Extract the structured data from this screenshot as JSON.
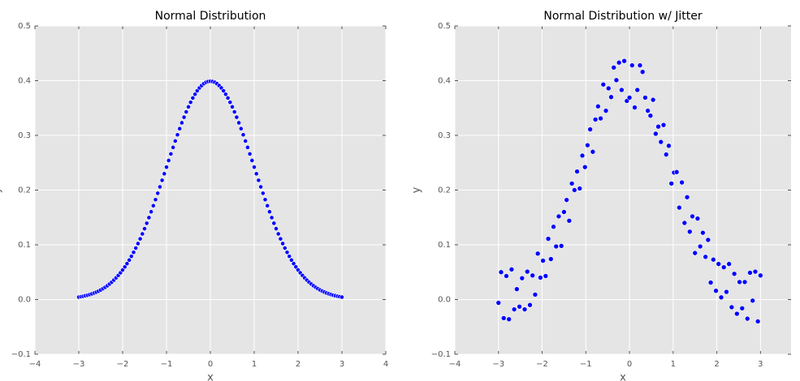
{
  "chart_data": [
    {
      "type": "scatter",
      "title": "Normal Distribution",
      "xlabel": "x",
      "ylabel": "y",
      "color": "#0000ff",
      "grid": true,
      "xlim": [
        -4,
        4
      ],
      "ylim": [
        -0.1,
        0.5
      ],
      "xticks": [
        {
          "value": -4,
          "label": "−4"
        },
        {
          "value": -3,
          "label": "−3"
        },
        {
          "value": -2,
          "label": "−2"
        },
        {
          "value": -1,
          "label": "−1"
        },
        0,
        1,
        2,
        3,
        4
      ],
      "yticks": [
        {
          "value": -0.1,
          "label": "−0.1"
        },
        {
          "value": 0,
          "label": "0.0"
        },
        0.1,
        0.2,
        0.3,
        0.4,
        0.5
      ],
      "x": [
        -3,
        -2.95,
        -2.9,
        -2.85,
        -2.8,
        -2.75,
        -2.7,
        -2.65,
        -2.6,
        -2.55,
        -2.5,
        -2.45,
        -2.4,
        -2.35,
        -2.3,
        -2.25,
        -2.2,
        -2.15,
        -2.1,
        -2.05,
        -2,
        -1.95,
        -1.9,
        -1.85,
        -1.8,
        -1.75,
        -1.7,
        -1.65,
        -1.6,
        -1.55,
        -1.5,
        -1.45,
        -1.4,
        -1.35,
        -1.3,
        -1.25,
        -1.2,
        -1.15,
        -1.1,
        -1.05,
        -1,
        -0.95,
        -0.9,
        -0.85,
        -0.8,
        -0.75,
        -0.7,
        -0.65,
        -0.6,
        -0.55,
        -0.5,
        -0.45,
        -0.4,
        -0.35,
        -0.3,
        -0.25,
        -0.2,
        -0.15,
        -0.1,
        -0.05,
        0,
        0.05,
        0.1,
        0.15,
        0.2,
        0.25,
        0.3,
        0.35,
        0.4,
        0.45,
        0.5,
        0.55,
        0.6,
        0.65,
        0.7,
        0.75,
        0.8,
        0.85,
        0.9,
        0.95,
        1,
        1.05,
        1.1,
        1.15,
        1.2,
        1.25,
        1.3,
        1.35,
        1.4,
        1.45,
        1.5,
        1.55,
        1.6,
        1.65,
        1.7,
        1.75,
        1.8,
        1.85,
        1.9,
        1.95,
        2,
        2.05,
        2.1,
        2.15,
        2.2,
        2.25,
        2.3,
        2.35,
        2.4,
        2.45,
        2.5,
        2.55,
        2.6,
        2.65,
        2.7,
        2.75,
        2.8,
        2.85,
        2.9,
        2.95,
        3
      ],
      "values": [
        0.0044,
        0.0051,
        0.006,
        0.0069,
        0.0079,
        0.0091,
        0.0104,
        0.0119,
        0.0136,
        0.0154,
        0.0175,
        0.0198,
        0.0224,
        0.0252,
        0.0283,
        0.0317,
        0.0355,
        0.0396,
        0.044,
        0.0488,
        0.054,
        0.0596,
        0.0656,
        0.0721,
        0.079,
        0.0863,
        0.094,
        0.1023,
        0.1109,
        0.12,
        0.1295,
        0.1394,
        0.1497,
        0.1604,
        0.1714,
        0.1826,
        0.1942,
        0.2059,
        0.2179,
        0.2299,
        0.242,
        0.2541,
        0.2661,
        0.278,
        0.2897,
        0.3011,
        0.3123,
        0.323,
        0.3332,
        0.3429,
        0.3521,
        0.3605,
        0.3683,
        0.3752,
        0.3814,
        0.3867,
        0.391,
        0.3945,
        0.397,
        0.3984,
        0.3989,
        0.3984,
        0.397,
        0.3945,
        0.391,
        0.3867,
        0.3814,
        0.3752,
        0.3683,
        0.3605,
        0.3521,
        0.3429,
        0.3332,
        0.323,
        0.3123,
        0.3011,
        0.2897,
        0.278,
        0.2661,
        0.2541,
        0.242,
        0.2299,
        0.2179,
        0.2059,
        0.1942,
        0.1826,
        0.1714,
        0.1604,
        0.1497,
        0.1394,
        0.1295,
        0.12,
        0.1109,
        0.1023,
        0.094,
        0.0863,
        0.079,
        0.0721,
        0.0656,
        0.0596,
        0.054,
        0.0488,
        0.044,
        0.0396,
        0.0355,
        0.0317,
        0.0283,
        0.0252,
        0.0224,
        0.0198,
        0.0175,
        0.0154,
        0.0136,
        0.0119,
        0.0104,
        0.0091,
        0.0079,
        0.0069,
        0.006,
        0.0051,
        0.0044
      ]
    },
    {
      "type": "scatter",
      "title": "Normal Distribution w/ Jitter",
      "xlabel": "x",
      "ylabel": "y",
      "color": "#0000ff",
      "grid": true,
      "xlim": [
        -4,
        3.7
      ],
      "ylim": [
        -0.1,
        0.5
      ],
      "xticks": [
        {
          "value": -4,
          "label": "−4"
        },
        {
          "value": -3,
          "label": "−3"
        },
        {
          "value": -2,
          "label": "−2"
        },
        {
          "value": -1,
          "label": "−1"
        },
        0,
        1,
        2,
        3
      ],
      "yticks": [
        {
          "value": -0.1,
          "label": "−0.1"
        },
        {
          "value": 0,
          "label": "0.0"
        },
        0.1,
        0.2,
        0.3,
        0.4,
        0.5
      ],
      "x": [
        -3,
        -2.94,
        -2.88,
        -2.82,
        -2.76,
        -2.7,
        -2.64,
        -2.58,
        -2.52,
        -2.46,
        -2.4,
        -2.34,
        -2.28,
        -2.22,
        -2.16,
        -2.1,
        -2.04,
        -1.98,
        -1.92,
        -1.86,
        -1.8,
        -1.74,
        -1.68,
        -1.62,
        -1.56,
        -1.5,
        -1.44,
        -1.38,
        -1.32,
        -1.26,
        -1.2,
        -1.14,
        -1.08,
        -1.02,
        -0.96,
        -0.9,
        -0.84,
        -0.78,
        -0.72,
        -0.66,
        -0.6,
        -0.54,
        -0.48,
        -0.42,
        -0.36,
        -0.3,
        -0.24,
        -0.18,
        -0.12,
        -0.06,
        0,
        0.06,
        0.12,
        0.18,
        0.24,
        0.3,
        0.36,
        0.42,
        0.48,
        0.54,
        0.6,
        0.66,
        0.72,
        0.78,
        0.84,
        0.9,
        0.96,
        1.02,
        1.08,
        1.14,
        1.2,
        1.26,
        1.32,
        1.38,
        1.44,
        1.5,
        1.56,
        1.62,
        1.68,
        1.74,
        1.8,
        1.86,
        1.92,
        1.98,
        2.04,
        2.1,
        2.16,
        2.22,
        2.28,
        2.34,
        2.4,
        2.46,
        2.52,
        2.58,
        2.64,
        2.7,
        2.76,
        2.82,
        2.88,
        2.94,
        3
      ],
      "values": [
        -0.006,
        0.05,
        -0.034,
        0.043,
        -0.036,
        0.055,
        -0.018,
        0.019,
        -0.013,
        0.039,
        -0.018,
        0.051,
        -0.01,
        0.044,
        0.009,
        0.084,
        0.04,
        0.071,
        0.043,
        0.111,
        0.074,
        0.133,
        0.097,
        0.152,
        0.098,
        0.16,
        0.182,
        0.144,
        0.212,
        0.2,
        0.234,
        0.203,
        0.263,
        0.242,
        0.282,
        0.311,
        0.27,
        0.329,
        0.353,
        0.331,
        0.393,
        0.345,
        0.386,
        0.37,
        0.424,
        0.401,
        0.433,
        0.383,
        0.436,
        0.363,
        0.369,
        0.428,
        0.351,
        0.383,
        0.428,
        0.416,
        0.369,
        0.345,
        0.336,
        0.365,
        0.303,
        0.316,
        0.288,
        0.319,
        0.265,
        0.281,
        0.212,
        0.232,
        0.233,
        0.168,
        0.214,
        0.14,
        0.187,
        0.124,
        0.152,
        0.085,
        0.148,
        0.097,
        0.122,
        0.078,
        0.109,
        0.031,
        0.073,
        0.016,
        0.065,
        0.004,
        0.059,
        0.014,
        0.065,
        -0.014,
        0.047,
        -0.026,
        0.032,
        -0.016,
        0.032,
        -0.035,
        0.049,
        -0.002,
        0.051,
        -0.04,
        0.044
      ]
    }
  ]
}
